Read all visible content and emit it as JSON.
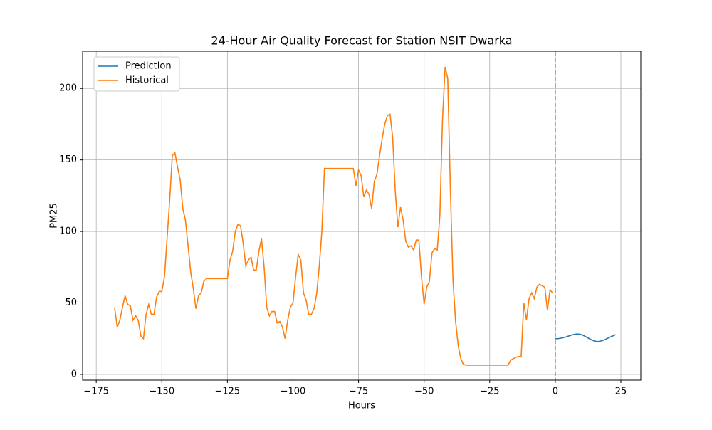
{
  "chart_data": {
    "type": "line",
    "title": "24-Hour Air Quality Forecast for Station NSIT Dwarka",
    "x_label": "Hours",
    "y_label": "PM25",
    "xlim": [
      -180.2,
      32.6
    ],
    "ylim": [
      -4,
      226
    ],
    "xticks": [
      {
        "value": -175,
        "label": "−175"
      },
      {
        "value": -150,
        "label": "−150"
      },
      {
        "value": -125,
        "label": "−125"
      },
      {
        "value": -100,
        "label": "−100"
      },
      {
        "value": -75,
        "label": "−75"
      },
      {
        "value": -50,
        "label": "−50"
      },
      {
        "value": -25,
        "label": "−25"
      },
      0,
      25
    ],
    "yticks": [
      0,
      50,
      100,
      150,
      200
    ],
    "grid": true,
    "legend": "upper-left",
    "vline": {
      "x": 0,
      "color": "#808080"
    },
    "series": [
      {
        "name": "Prediction",
        "color": "#1f77b4",
        "x": [
          0,
          1,
          2,
          3,
          4,
          5,
          6,
          7,
          8,
          9,
          10,
          11,
          12,
          13,
          14,
          15,
          16,
          17,
          18,
          19,
          20,
          21,
          22,
          23
        ],
        "values": [
          25,
          25,
          25.3,
          25.7,
          26.2,
          26.8,
          27.4,
          27.9,
          28.2,
          28.2,
          27.8,
          27,
          26,
          25,
          24,
          23.3,
          23,
          23.2,
          23.7,
          24.4,
          25.3,
          26.2,
          27,
          27.8
        ]
      },
      {
        "name": "Historical",
        "color": "#ff7f0e",
        "x": [
          -168,
          -167,
          -166,
          -165,
          -164,
          -163,
          -162,
          -161,
          -160,
          -159,
          -158,
          -157,
          -156,
          -155,
          -154,
          -153,
          -152,
          -151,
          -150,
          -149,
          -148,
          -147,
          -146,
          -145,
          -144,
          -143,
          -142,
          -141,
          -140,
          -139,
          -138,
          -137,
          -136,
          -135,
          -134,
          -133,
          -132,
          -131,
          -130,
          -129,
          -128,
          -127,
          -126,
          -125,
          -124,
          -123,
          -122,
          -121,
          -120,
          -119,
          -118,
          -117,
          -116,
          -115,
          -114,
          -113,
          -112,
          -111,
          -110,
          -109,
          -108,
          -107,
          -106,
          -105,
          -104,
          -103,
          -102,
          -101,
          -100,
          -99,
          -98,
          -97,
          -96,
          -95,
          -94,
          -93,
          -92,
          -91,
          -90,
          -89,
          -88,
          -87,
          -86,
          -85,
          -84,
          -83,
          -82,
          -81,
          -80,
          -79,
          -78,
          -77,
          -76,
          -75,
          -74,
          -73,
          -72,
          -71,
          -70,
          -69,
          -68,
          -67,
          -66,
          -65,
          -64,
          -63,
          -62,
          -61,
          -60,
          -59,
          -58,
          -57,
          -56,
          -55,
          -54,
          -53,
          -52,
          -51,
          -50,
          -49,
          -48,
          -47,
          -46,
          -45,
          -44,
          -43,
          -42,
          -41,
          -40,
          -39,
          -38,
          -37,
          -36,
          -35,
          -34,
          -33,
          -32,
          -31,
          -30,
          -29,
          -28,
          -27,
          -26,
          -25,
          -24,
          -23,
          -22,
          -21,
          -20,
          -19,
          -18,
          -17,
          -16,
          -15,
          -14,
          -13,
          -12,
          -11,
          -10,
          -9,
          -8,
          -7,
          -6,
          -5,
          -4,
          -3,
          -2,
          -1
        ],
        "values": [
          47,
          33,
          38,
          47,
          55,
          49,
          48,
          38,
          41,
          38,
          27,
          25,
          42,
          49,
          42,
          42,
          54,
          58,
          58,
          68,
          95,
          122,
          153,
          155,
          145,
          136,
          116,
          108,
          90,
          72,
          60,
          46,
          55,
          57,
          65,
          67,
          67,
          67,
          67,
          67,
          67,
          67,
          67,
          67,
          80,
          86,
          100,
          105,
          104,
          92,
          76,
          80,
          82,
          73,
          73,
          86,
          95,
          75,
          47,
          41,
          44,
          44,
          36,
          37,
          33,
          25,
          38,
          47,
          50,
          68,
          84,
          80,
          57,
          52,
          42,
          42,
          46,
          56,
          75,
          100,
          144,
          144,
          144,
          144,
          144,
          144,
          144,
          144,
          144,
          144,
          144,
          144,
          132,
          143,
          139,
          124,
          129,
          126,
          116,
          135,
          140,
          153,
          165,
          175,
          181,
          182,
          166,
          128,
          103,
          117,
          108,
          93,
          89,
          90,
          87,
          94,
          94,
          68,
          49,
          61,
          65,
          85,
          88,
          87,
          111,
          178,
          215,
          207,
          130,
          66,
          37,
          20,
          11,
          7,
          6.5,
          6.5,
          6.5,
          6.5,
          6.5,
          6.5,
          6.5,
          6.5,
          6.5,
          6.5,
          6.5,
          6.5,
          6.5,
          6.5,
          6.5,
          6.5,
          6.5,
          10,
          11,
          12,
          12.5,
          12.5,
          50,
          38,
          53,
          57,
          53,
          61,
          63,
          62,
          61,
          45,
          59,
          57
        ]
      }
    ]
  }
}
